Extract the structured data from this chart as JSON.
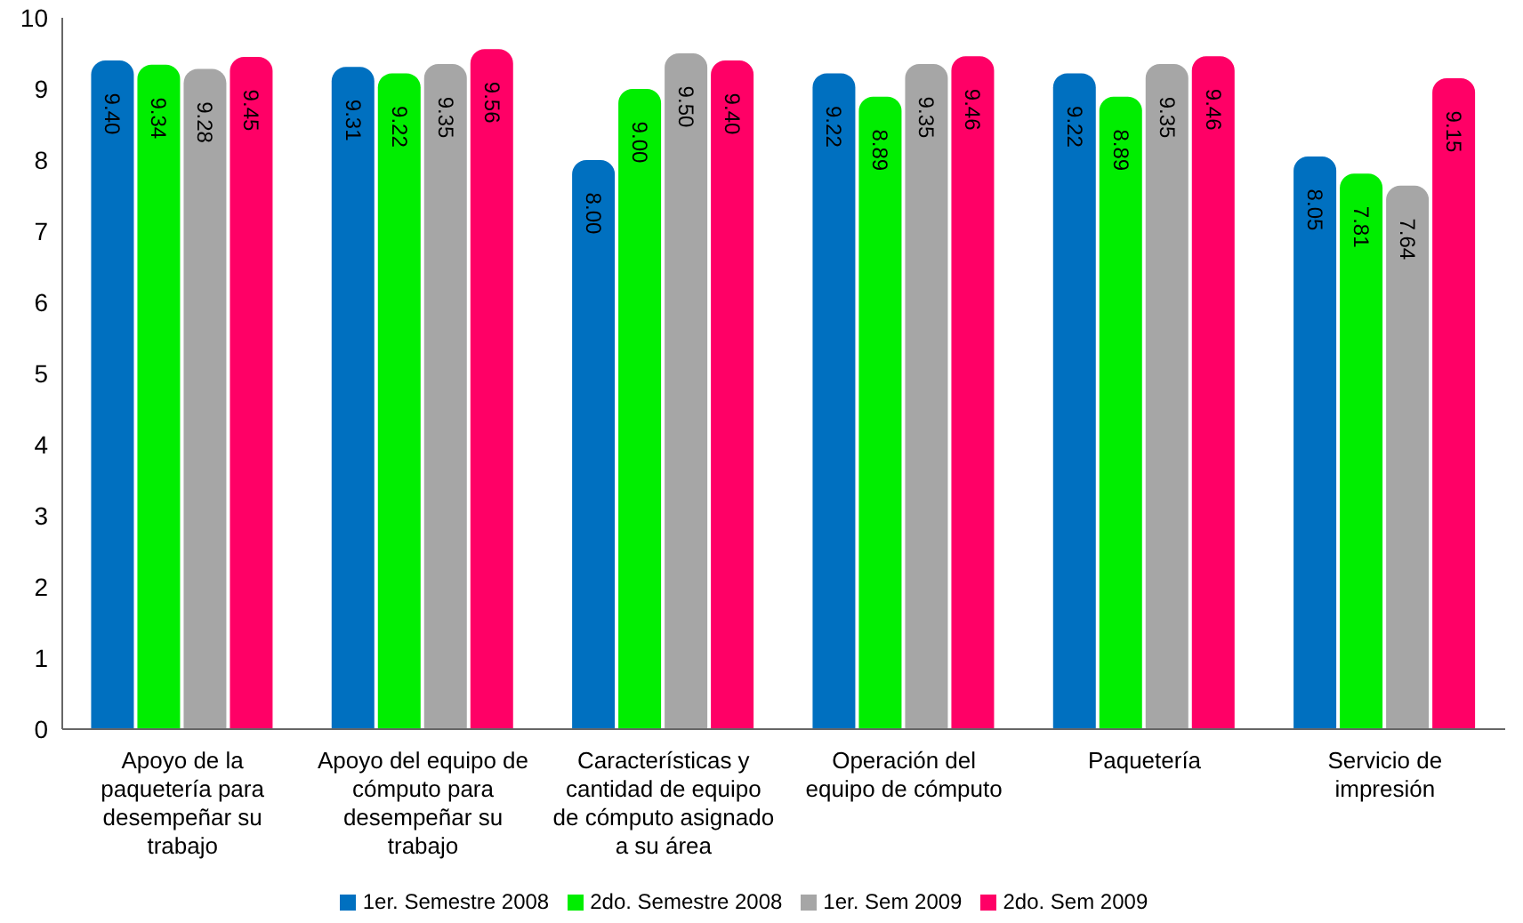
{
  "chart_data": {
    "type": "bar",
    "categories": [
      "Apoyo de la paquetería para desempeñar su trabajo",
      "Apoyo del equipo de cómputo para desempeñar su trabajo",
      "Características y cantidad de equipo de cómputo asignado a su área",
      "Operación del equipo de cómputo",
      "Paquetería",
      "Servicio de impresión"
    ],
    "series": [
      {
        "name": "1er. Semestre 2008",
        "color": "#0070c0",
        "values": [
          9.4,
          9.31,
          8.0,
          9.22,
          9.22,
          8.05
        ],
        "value_labels": [
          "9.40",
          "9.31",
          "8.00",
          "9.22",
          "9.22",
          "8.05"
        ]
      },
      {
        "name": "2do. Semestre 2008",
        "color": "#00ee00",
        "values": [
          9.34,
          9.22,
          9.0,
          8.89,
          8.89,
          7.81
        ],
        "value_labels": [
          "9.34",
          "9.22",
          "9.00",
          "8.89",
          "8.89",
          "7.81"
        ]
      },
      {
        "name": "1er. Sem 2009",
        "color": "#a6a6a6",
        "values": [
          9.28,
          9.35,
          9.5,
          9.35,
          9.35,
          7.64
        ],
        "value_labels": [
          "9.28",
          "9.35",
          "9.50",
          "9.35",
          "9.35",
          "7.64"
        ]
      },
      {
        "name": "2do. Sem 2009",
        "color": "#ff0066",
        "values": [
          9.45,
          9.56,
          9.4,
          9.46,
          9.46,
          9.15
        ],
        "value_labels": [
          "9.45",
          "9.56",
          "9.40",
          "9.46",
          "9.46",
          "9.15"
        ]
      }
    ],
    "ylim": [
      0,
      10
    ],
    "yticks": [
      0,
      1,
      2,
      3,
      4,
      5,
      6,
      7,
      8,
      9,
      10
    ],
    "grid": false,
    "legend": "bottom"
  }
}
